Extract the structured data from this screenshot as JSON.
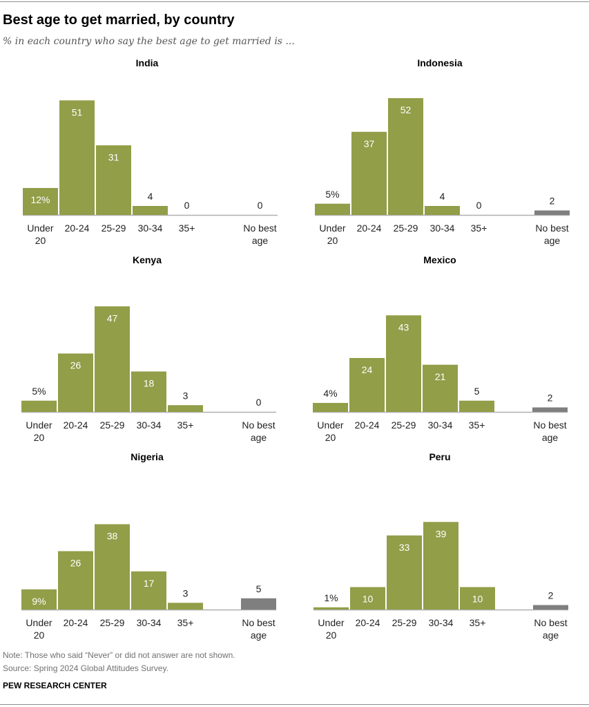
{
  "header": {
    "title": "Best age to get married, by country",
    "subtitle": "% in each country who say the best age to get married is ..."
  },
  "colors": {
    "bar": "#929e48",
    "no_best": "#7f7f7f",
    "axis": "#b0b0b0",
    "label_inside": "#ffffff",
    "label_outside": "#222222"
  },
  "chart_data": [
    {
      "type": "bar",
      "title": "India",
      "categories": [
        "Under 20",
        "20-24",
        "25-29",
        "30-34",
        "35+",
        "No best age"
      ],
      "values": [
        12,
        51,
        31,
        4,
        0,
        0
      ],
      "value_labels": [
        "12%",
        "51",
        "31",
        "4",
        "0",
        "0"
      ],
      "ylim": [
        0,
        55
      ]
    },
    {
      "type": "bar",
      "title": "Indonesia",
      "categories": [
        "Under 20",
        "20-24",
        "25-29",
        "30-34",
        "35+",
        "No best age"
      ],
      "values": [
        5,
        37,
        52,
        4,
        0,
        2
      ],
      "value_labels": [
        "5%",
        "37",
        "52",
        "4",
        "0",
        "2"
      ],
      "ylim": [
        0,
        55
      ]
    },
    {
      "type": "bar",
      "title": "Kenya",
      "categories": [
        "Under 20",
        "20-24",
        "25-29",
        "30-34",
        "35+",
        "No best age"
      ],
      "values": [
        5,
        26,
        47,
        18,
        3,
        0
      ],
      "value_labels": [
        "5%",
        "26",
        "47",
        "18",
        "3",
        "0"
      ],
      "ylim": [
        0,
        55
      ]
    },
    {
      "type": "bar",
      "title": "Mexico",
      "categories": [
        "Under 20",
        "20-24",
        "25-29",
        "30-34",
        "35+",
        "No best age"
      ],
      "values": [
        4,
        24,
        43,
        21,
        5,
        2
      ],
      "value_labels": [
        "4%",
        "24",
        "43",
        "21",
        "5",
        "2"
      ],
      "ylim": [
        0,
        55
      ]
    },
    {
      "type": "bar",
      "title": "Nigeria",
      "categories": [
        "Under 20",
        "20-24",
        "25-29",
        "30-34",
        "35+",
        "No best age"
      ],
      "values": [
        9,
        26,
        38,
        17,
        3,
        5
      ],
      "value_labels": [
        "9%",
        "26",
        "38",
        "17",
        "3",
        "5"
      ],
      "ylim": [
        0,
        55
      ]
    },
    {
      "type": "bar",
      "title": "Peru",
      "categories": [
        "Under 20",
        "20-24",
        "25-29",
        "30-34",
        "35+",
        "No best age"
      ],
      "values": [
        1,
        10,
        33,
        39,
        10,
        2
      ],
      "value_labels": [
        "1%",
        "10",
        "33",
        "39",
        "10",
        "2"
      ],
      "ylim": [
        0,
        55
      ]
    }
  ],
  "footer": {
    "note": "Note: Those who said “Never” or did not answer are not shown.",
    "source": "Source: Spring 2024 Global Attitudes Survey.",
    "org": "PEW RESEARCH CENTER"
  }
}
